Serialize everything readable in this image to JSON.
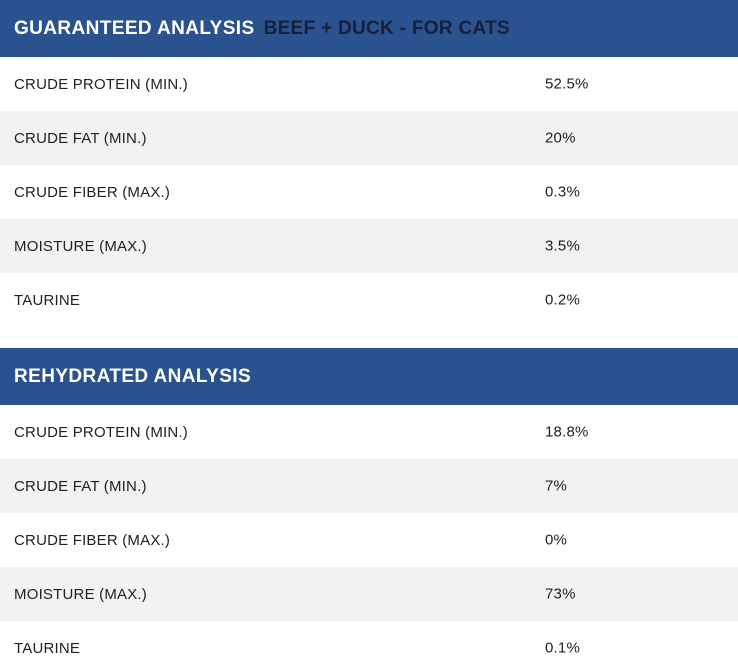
{
  "colors": {
    "header_bg": "#2a528f",
    "header_title": "#ffffff",
    "header_subtitle": "#15203a",
    "row_alt_bg": "#f2f2f2",
    "row_text": "#212121",
    "page_bg": "#ffffff"
  },
  "sections": [
    {
      "title": "GUARANTEED ANALYSIS",
      "subtitle": "BEEF + DUCK - FOR CATS",
      "rows": [
        {
          "label": "CRUDE PROTEIN (MIN.)",
          "value": "52.5%"
        },
        {
          "label": "CRUDE FAT (MIN.)",
          "value": "20%"
        },
        {
          "label": "CRUDE FIBER (MAX.)",
          "value": "0.3%"
        },
        {
          "label": "MOISTURE (MAX.)",
          "value": "3.5%"
        },
        {
          "label": "TAURINE",
          "value": "0.2%"
        }
      ]
    },
    {
      "title": "REHYDRATED ANALYSIS",
      "rows": [
        {
          "label": "CRUDE PROTEIN (MIN.)",
          "value": "18.8%"
        },
        {
          "label": "CRUDE FAT (MIN.)",
          "value": "7%"
        },
        {
          "label": "CRUDE FIBER (MAX.)",
          "value": "0%"
        },
        {
          "label": "MOISTURE (MAX.)",
          "value": "73%"
        },
        {
          "label": "TAURINE",
          "value": "0.1%"
        }
      ]
    }
  ]
}
